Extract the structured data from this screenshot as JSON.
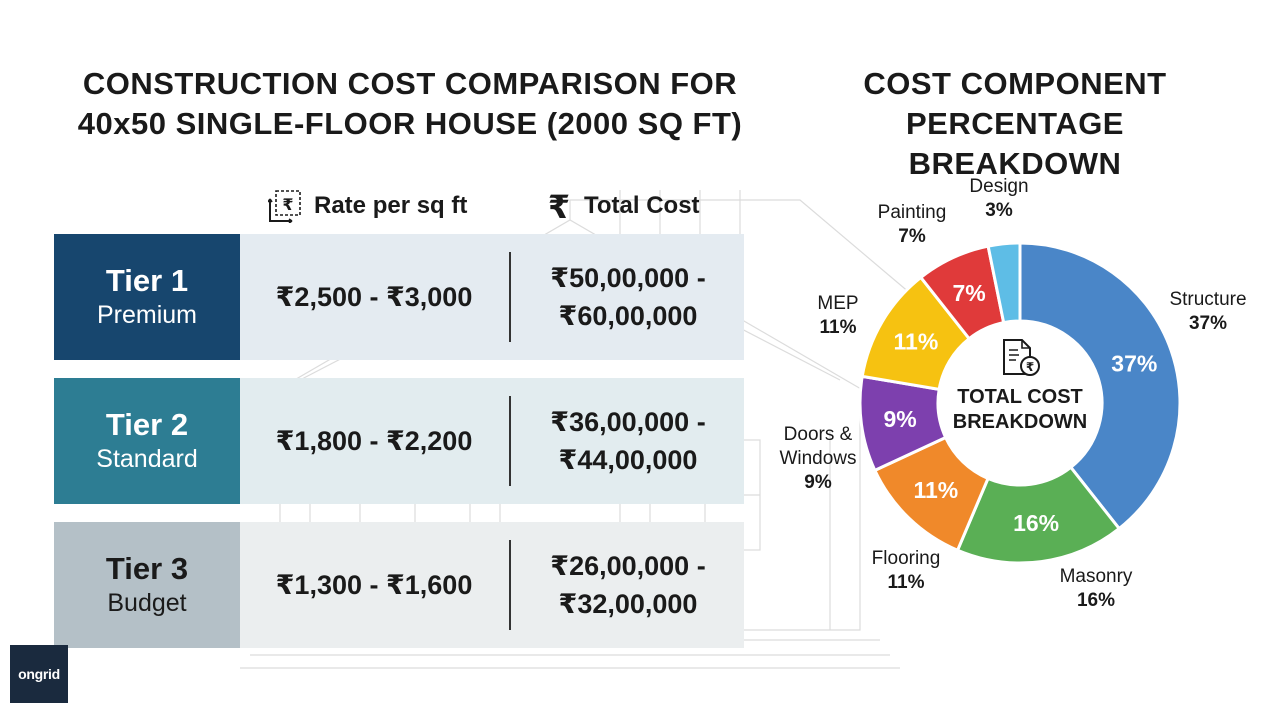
{
  "table": {
    "title_lines": [
      "CONSTRUCTION COST COMPARISON FOR",
      "40x50 SINGLE-FLOOR HOUSE (2000 SQ FT)"
    ],
    "columns": {
      "rate": "Rate per sq ft",
      "total": "Total Cost"
    },
    "tiers": [
      {
        "name": "Tier 1",
        "sub": "Premium",
        "rate": "₹2,500 - ₹3,000",
        "total_lines": [
          "₹50,00,000 -",
          "₹60,00,000"
        ],
        "label_bg": "#17466e",
        "label_fg": "#ffffff",
        "row_bg": "#e4ebf1"
      },
      {
        "name": "Tier 2",
        "sub": "Standard",
        "rate": "₹1,800 - ₹2,200",
        "total_lines": [
          "₹36,00,000 -",
          "₹44,00,000"
        ],
        "label_bg": "#2d7d93",
        "label_fg": "#ffffff",
        "row_bg": "#e2ecef"
      },
      {
        "name": "Tier 3",
        "sub": "Budget",
        "rate": "₹1,300 - ₹1,600",
        "total_lines": [
          "₹26,00,000 -",
          "₹32,00,000"
        ],
        "label_bg": "#b4c0c7",
        "label_fg": "#1a1a1a",
        "row_bg": "#ebeeef"
      }
    ],
    "icons": {
      "rate": "rupee-area-icon",
      "total": "rupee-icon"
    }
  },
  "chart_data": {
    "type": "pie",
    "title_lines": [
      "COST COMPONENT",
      "PERCENTAGE BREAKDOWN"
    ],
    "center_label_lines": [
      "TOTAL COST",
      "BREAKDOWN"
    ],
    "center_icon": "document-rupee-icon",
    "slices": [
      {
        "label_lines": [
          "Structure"
        ],
        "value": 37,
        "inner_label": "37%",
        "outer_label": "37%",
        "color": "#4a86c8"
      },
      {
        "label_lines": [
          "Masonry"
        ],
        "value": 16,
        "inner_label": "16%",
        "outer_label": "16%",
        "color": "#5aaf55"
      },
      {
        "label_lines": [
          "Flooring"
        ],
        "value": 11,
        "inner_label": "11%",
        "outer_label": "11%",
        "color": "#f0892a"
      },
      {
        "label_lines": [
          "Doors &",
          "Windows"
        ],
        "value": 9,
        "inner_label": "9%",
        "outer_label": "9%",
        "color": "#7d40ae"
      },
      {
        "label_lines": [
          "MEP"
        ],
        "value": 11,
        "inner_label": "11%",
        "outer_label": "11%",
        "color": "#f6c211"
      },
      {
        "label_lines": [
          "Painting"
        ],
        "value": 7,
        "inner_label": "7%",
        "outer_label": "7%",
        "color": "#e03a3a"
      },
      {
        "label_lines": [
          "Design"
        ],
        "value": 3,
        "inner_label": "",
        "outer_label": "3%",
        "color": "#5ebde6"
      }
    ]
  },
  "logo": {
    "text": "ongrid"
  }
}
